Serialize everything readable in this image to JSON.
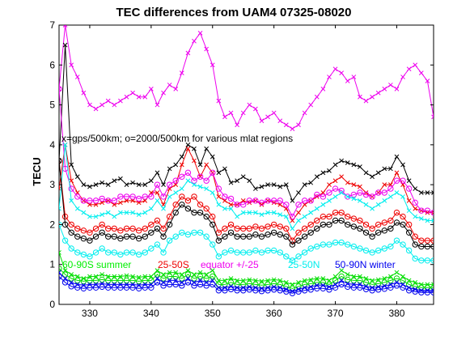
{
  "chart_data": {
    "type": "line",
    "title": "TEC differences from UAM4 07325-08020",
    "ylabel": "TECU",
    "xlabel": "",
    "xlim": [
      325,
      386
    ],
    "ylim": [
      0,
      7
    ],
    "xticks": [
      330,
      340,
      350,
      360,
      370,
      380
    ],
    "yticks": [
      0,
      1,
      2,
      3,
      4,
      5,
      6,
      7
    ],
    "grid": false,
    "annotation": "x=gps/500km; o=2000/500km for various mlat regions",
    "legend": [
      {
        "label": "60-90S summer",
        "color": "#00ee00"
      },
      {
        "label": "25-50S",
        "color": "#ee0000"
      },
      {
        "label": "equator +/-25",
        "color": "#ee00ee"
      },
      {
        "label": "25-50N",
        "color": "#00eeee"
      },
      {
        "label": "50-90N winter",
        "color": "#0000ee"
      }
    ],
    "colors": {
      "black": "#000000",
      "green": "#00dd00",
      "red": "#ee0000",
      "magenta": "#ee00ee",
      "cyan": "#00eeee",
      "blue": "#0000ee"
    },
    "x": [
      325,
      326,
      327,
      328,
      329,
      330,
      331,
      332,
      333,
      334,
      335,
      336,
      337,
      338,
      339,
      340,
      341,
      342,
      343,
      344,
      345,
      346,
      347,
      348,
      349,
      350,
      351,
      352,
      353,
      354,
      355,
      356,
      357,
      358,
      359,
      360,
      361,
      362,
      363,
      364,
      365,
      366,
      367,
      368,
      369,
      370,
      371,
      372,
      373,
      374,
      375,
      376,
      377,
      378,
      379,
      380,
      381,
      382,
      383,
      384,
      385,
      386
    ],
    "series": [
      {
        "name": "equator +/-25",
        "color": "#ee00ee",
        "marker": "x",
        "values": [
          5.4,
          7.0,
          6.0,
          5.7,
          5.3,
          5.0,
          4.9,
          5.0,
          5.1,
          5.0,
          5.1,
          5.2,
          5.3,
          5.2,
          5.2,
          5.4,
          5.0,
          5.3,
          5.5,
          5.4,
          5.8,
          6.3,
          6.6,
          6.8,
          6.4,
          6.0,
          5.1,
          4.7,
          4.8,
          4.5,
          4.8,
          5.0,
          4.9,
          4.6,
          4.7,
          4.8,
          4.6,
          4.5,
          4.4,
          4.5,
          4.8,
          5.0,
          5.2,
          5.4,
          5.7,
          5.9,
          5.8,
          5.6,
          5.7,
          5.2,
          5.1,
          5.2,
          5.3,
          5.4,
          5.5,
          5.4,
          5.7,
          5.9,
          6.0,
          5.8,
          5.6,
          4.7
        ]
      },
      {
        "name": "",
        "color": "#000000",
        "marker": "x",
        "values": [
          3.6,
          6.5,
          3.5,
          3.2,
          3.0,
          2.95,
          3.0,
          3.05,
          3.0,
          3.1,
          3.15,
          3.0,
          3.05,
          3.0,
          3.0,
          3.1,
          3.3,
          3.0,
          3.4,
          3.5,
          3.7,
          4.0,
          3.9,
          3.5,
          3.9,
          3.7,
          3.3,
          3.4,
          3.05,
          3.1,
          3.2,
          3.1,
          2.9,
          2.95,
          3.0,
          3.0,
          2.95,
          3.0,
          2.6,
          2.8,
          3.0,
          3.05,
          3.2,
          3.3,
          3.35,
          3.5,
          3.6,
          3.55,
          3.5,
          3.45,
          3.3,
          3.2,
          3.3,
          3.4,
          3.4,
          3.7,
          3.5,
          3.1,
          2.9,
          2.8,
          2.8,
          2.8
        ]
      },
      {
        "name": "25-50S",
        "color": "#ee0000",
        "marker": "x",
        "values": [
          2.9,
          4.0,
          3.1,
          2.8,
          2.6,
          2.5,
          2.5,
          2.55,
          2.6,
          2.5,
          2.55,
          2.6,
          2.6,
          2.55,
          2.6,
          2.8,
          2.8,
          2.5,
          2.9,
          3.0,
          3.5,
          3.9,
          3.6,
          3.2,
          3.5,
          3.3,
          2.7,
          2.6,
          2.5,
          2.5,
          2.6,
          2.55,
          2.6,
          2.5,
          2.6,
          2.55,
          2.5,
          2.4,
          2.1,
          2.3,
          2.5,
          2.6,
          2.7,
          2.8,
          3.0,
          3.1,
          3.2,
          3.05,
          3.0,
          2.95,
          2.8,
          2.7,
          2.8,
          3.0,
          3.0,
          3.3,
          3.0,
          2.6,
          2.4,
          2.35,
          2.3,
          2.3
        ]
      },
      {
        "name": "",
        "color": "#ee00ee",
        "marker": "o",
        "values": [
          5.4,
          3.4,
          2.9,
          2.7,
          2.6,
          2.6,
          2.6,
          2.65,
          2.6,
          2.6,
          2.7,
          2.7,
          2.7,
          2.65,
          2.7,
          2.7,
          3.0,
          2.7,
          3.0,
          3.1,
          3.2,
          3.3,
          3.1,
          3.2,
          3.1,
          3.3,
          2.9,
          2.7,
          2.65,
          2.5,
          2.5,
          2.6,
          2.6,
          2.55,
          2.6,
          2.6,
          2.6,
          2.5,
          2.2,
          2.5,
          2.6,
          2.6,
          2.75,
          2.7,
          2.8,
          2.9,
          2.85,
          2.7,
          2.75,
          2.8,
          2.75,
          2.7,
          2.8,
          2.8,
          2.9,
          3.1,
          3.1,
          2.9,
          2.55,
          2.35,
          2.35,
          2.3
        ]
      },
      {
        "name": "",
        "color": "#00eeee",
        "marker": "x",
        "values": [
          2.4,
          4.0,
          2.6,
          2.4,
          2.3,
          2.2,
          2.2,
          2.25,
          2.3,
          2.2,
          2.3,
          2.3,
          2.3,
          2.25,
          2.3,
          2.4,
          2.6,
          2.4,
          2.7,
          2.8,
          2.9,
          3.1,
          3.0,
          2.95,
          2.9,
          2.8,
          2.5,
          2.4,
          2.4,
          2.2,
          2.3,
          2.3,
          2.3,
          2.25,
          2.3,
          2.3,
          2.25,
          2.2,
          1.9,
          2.1,
          2.2,
          2.3,
          2.4,
          2.5,
          2.6,
          2.7,
          2.8,
          2.7,
          2.65,
          2.6,
          2.5,
          2.4,
          2.5,
          2.6,
          2.7,
          2.8,
          2.7,
          2.35,
          2.2,
          2.15,
          2.1,
          2.1
        ]
      },
      {
        "name": "",
        "color": "#ee0000",
        "marker": "o",
        "values": [
          3.6,
          2.2,
          2.0,
          1.9,
          1.85,
          1.8,
          1.9,
          2.0,
          1.9,
          1.9,
          1.85,
          1.9,
          1.9,
          1.85,
          1.9,
          2.0,
          2.1,
          1.9,
          2.2,
          2.5,
          2.7,
          2.6,
          2.7,
          2.5,
          2.4,
          2.2,
          1.8,
          1.9,
          2.0,
          1.9,
          1.9,
          1.9,
          1.95,
          1.9,
          1.95,
          2.0,
          1.95,
          1.9,
          1.6,
          1.8,
          1.9,
          2.0,
          2.1,
          2.2,
          2.2,
          2.3,
          2.3,
          2.2,
          2.15,
          2.1,
          2.0,
          1.9,
          2.0,
          2.05,
          2.1,
          2.3,
          2.2,
          2.0,
          1.7,
          1.6,
          1.6,
          1.6
        ]
      },
      {
        "name": "",
        "color": "#000000",
        "marker": "o",
        "values": [
          3.6,
          2.0,
          1.8,
          1.7,
          1.65,
          1.6,
          1.7,
          1.8,
          1.7,
          1.7,
          1.65,
          1.7,
          1.7,
          1.65,
          1.7,
          1.8,
          1.9,
          1.7,
          2.0,
          2.3,
          2.5,
          2.4,
          2.3,
          2.3,
          2.2,
          2.0,
          1.6,
          1.7,
          1.8,
          1.7,
          1.7,
          1.7,
          1.75,
          1.7,
          1.75,
          1.8,
          1.75,
          1.7,
          1.5,
          1.6,
          1.7,
          1.8,
          1.9,
          2.0,
          2.0,
          2.1,
          2.1,
          2.0,
          1.95,
          1.9,
          1.8,
          1.7,
          1.8,
          1.85,
          1.9,
          2.05,
          2.0,
          1.8,
          1.5,
          1.45,
          1.45,
          1.45
        ]
      },
      {
        "name": "",
        "color": "#00eeee",
        "marker": "o",
        "values": [
          2.0,
          1.6,
          1.4,
          1.3,
          1.25,
          1.2,
          1.3,
          1.4,
          1.3,
          1.3,
          1.25,
          1.3,
          1.3,
          1.25,
          1.3,
          1.4,
          1.5,
          1.3,
          1.6,
          1.7,
          1.8,
          1.75,
          1.8,
          1.8,
          1.7,
          1.5,
          1.2,
          1.3,
          1.35,
          1.3,
          1.3,
          1.3,
          1.35,
          1.3,
          1.35,
          1.35,
          1.3,
          1.2,
          1.1,
          1.2,
          1.3,
          1.4,
          1.45,
          1.5,
          1.5,
          1.55,
          1.55,
          1.5,
          1.45,
          1.4,
          1.35,
          1.3,
          1.35,
          1.4,
          1.45,
          1.6,
          1.5,
          1.35,
          1.15,
          1.1,
          1.1,
          1.1
        ]
      },
      {
        "name": "60-90S summer",
        "color": "#00dd00",
        "marker": "x",
        "values": [
          1.3,
          0.85,
          0.75,
          0.7,
          0.65,
          0.7,
          0.7,
          0.75,
          0.7,
          0.7,
          0.7,
          0.72,
          0.7,
          0.68,
          0.7,
          0.7,
          0.85,
          0.75,
          0.8,
          0.8,
          0.75,
          0.85,
          0.75,
          0.8,
          0.75,
          0.85,
          0.6,
          0.6,
          0.65,
          0.6,
          0.6,
          0.62,
          0.6,
          0.58,
          0.6,
          0.62,
          0.6,
          0.55,
          0.5,
          0.55,
          0.6,
          0.62,
          0.65,
          0.65,
          0.6,
          0.7,
          0.85,
          0.75,
          0.7,
          0.7,
          0.65,
          0.6,
          0.62,
          0.65,
          0.7,
          0.8,
          0.7,
          0.6,
          0.55,
          0.5,
          0.5,
          0.5
        ]
      },
      {
        "name": "",
        "color": "#00dd00",
        "marker": "o",
        "values": [
          0.9,
          0.75,
          0.65,
          0.6,
          0.58,
          0.6,
          0.6,
          0.62,
          0.6,
          0.6,
          0.6,
          0.6,
          0.6,
          0.58,
          0.6,
          0.6,
          0.75,
          0.65,
          0.7,
          0.7,
          0.65,
          0.75,
          0.65,
          0.7,
          0.65,
          0.7,
          0.5,
          0.5,
          0.55,
          0.5,
          0.5,
          0.52,
          0.5,
          0.48,
          0.5,
          0.52,
          0.5,
          0.45,
          0.4,
          0.45,
          0.5,
          0.52,
          0.55,
          0.55,
          0.5,
          0.6,
          0.7,
          0.62,
          0.6,
          0.6,
          0.55,
          0.5,
          0.52,
          0.55,
          0.6,
          0.65,
          0.6,
          0.5,
          0.45,
          0.42,
          0.42,
          0.42
        ]
      },
      {
        "name": "50-90N winter",
        "color": "#0000ee",
        "marker": "x",
        "values": [
          0.8,
          0.65,
          0.55,
          0.5,
          0.48,
          0.5,
          0.5,
          0.52,
          0.5,
          0.5,
          0.5,
          0.5,
          0.5,
          0.48,
          0.5,
          0.5,
          0.65,
          0.55,
          0.6,
          0.6,
          0.55,
          0.65,
          0.55,
          0.6,
          0.55,
          0.6,
          0.42,
          0.42,
          0.45,
          0.42,
          0.42,
          0.44,
          0.42,
          0.4,
          0.42,
          0.44,
          0.42,
          0.38,
          0.33,
          0.38,
          0.42,
          0.44,
          0.48,
          0.48,
          0.44,
          0.5,
          0.6,
          0.52,
          0.5,
          0.5,
          0.45,
          0.42,
          0.44,
          0.46,
          0.5,
          0.55,
          0.5,
          0.42,
          0.38,
          0.35,
          0.35,
          0.35
        ]
      },
      {
        "name": "",
        "color": "#0000ee",
        "marker": "o",
        "values": [
          0.7,
          0.55,
          0.45,
          0.42,
          0.4,
          0.42,
          0.42,
          0.44,
          0.42,
          0.42,
          0.42,
          0.42,
          0.42,
          0.4,
          0.42,
          0.42,
          0.55,
          0.47,
          0.5,
          0.5,
          0.47,
          0.55,
          0.47,
          0.5,
          0.47,
          0.5,
          0.35,
          0.35,
          0.38,
          0.35,
          0.35,
          0.37,
          0.35,
          0.33,
          0.35,
          0.37,
          0.35,
          0.32,
          0.28,
          0.32,
          0.35,
          0.37,
          0.4,
          0.4,
          0.37,
          0.42,
          0.5,
          0.44,
          0.42,
          0.42,
          0.38,
          0.35,
          0.37,
          0.39,
          0.42,
          0.47,
          0.42,
          0.35,
          0.32,
          0.3,
          0.3,
          0.3
        ]
      }
    ]
  }
}
